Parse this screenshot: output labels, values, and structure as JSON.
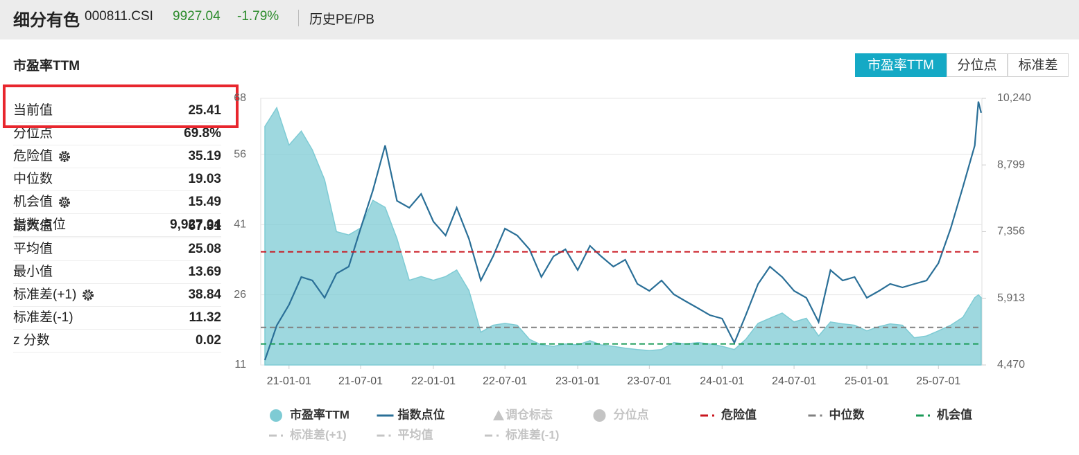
{
  "header": {
    "name": "细分有色",
    "code": "000811.CSI",
    "price": "9927.04",
    "change": "-1.79%",
    "link": "历史PE/PB"
  },
  "panel": {
    "title": "市盈率TTM",
    "tabs": [
      {
        "label": "市盈率TTM",
        "active": true
      },
      {
        "label": "分位点"
      },
      {
        "label": "标准差"
      }
    ]
  },
  "stats": [
    [
      {
        "label": "当前值",
        "value": "25.41"
      },
      {
        "label": "分位点",
        "value": "69.8%"
      },
      {
        "label": "危险值",
        "value": "35.19",
        "gear": true
      },
      {
        "label": "中位数",
        "value": "19.03"
      },
      {
        "label": "机会值",
        "value": "15.49",
        "gear": true
      },
      {
        "label": "指数点位",
        "value": "9,927.04"
      }
    ],
    [
      {
        "label": "最大值",
        "value": "67.31"
      },
      {
        "label": "平均值",
        "value": "25.08"
      },
      {
        "label": "最小值",
        "value": "13.69"
      },
      {
        "label": "标准差(+1)",
        "value": "38.84",
        "gear": true
      },
      {
        "label": "标准差(-1)",
        "value": "11.32"
      },
      {
        "label": "z 分数",
        "value": "0.02"
      }
    ]
  ],
  "chart_data": {
    "type": "area-line",
    "x": [
      "20-11-01",
      "20-12-01",
      "21-01-01",
      "21-02-01",
      "21-03-01",
      "21-04-01",
      "21-05-01",
      "21-06-01",
      "21-07-01",
      "21-08-01",
      "21-09-01",
      "21-10-01",
      "21-11-01",
      "21-12-01",
      "22-01-01",
      "22-02-01",
      "22-03-01",
      "22-04-01",
      "22-05-01",
      "22-06-01",
      "22-07-01",
      "22-08-01",
      "22-09-01",
      "22-10-01",
      "22-11-01",
      "22-12-01",
      "23-01-01",
      "23-02-01",
      "23-03-01",
      "23-04-01",
      "23-05-01",
      "23-06-01",
      "23-07-01",
      "23-08-01",
      "23-09-01",
      "23-10-01",
      "23-11-01",
      "23-12-01",
      "24-01-01",
      "24-02-01",
      "24-03-01",
      "24-04-01",
      "24-05-01",
      "24-06-01",
      "24-07-01",
      "24-08-01",
      "24-09-01",
      "24-10-01",
      "24-11-01",
      "24-12-01",
      "25-01-01",
      "25-02-01",
      "25-03-01",
      "25-04-01",
      "25-05-01",
      "25-06-01",
      "25-07-01",
      "25-08-01",
      "25-09-01",
      "25-10-01",
      "25-10-10",
      "25-10-17"
    ],
    "xlim": [
      "20-10-25",
      "25-10-19"
    ],
    "xticks": [
      "21-01-01",
      "21-07-01",
      "22-01-01",
      "22-07-01",
      "23-01-01",
      "23-07-01",
      "24-01-01",
      "24-07-01",
      "25-01-01",
      "25-07-01"
    ],
    "ylim": [
      11,
      68
    ],
    "yticks": [
      11,
      26,
      41,
      56,
      68
    ],
    "y2lim": [
      4470,
      10240
    ],
    "y2ticks": [
      {
        "value": 4470,
        "label": "4,470"
      },
      {
        "value": 5913,
        "label": "5,913"
      },
      {
        "value": 7356,
        "label": "7,356"
      },
      {
        "value": 8799,
        "label": "8,799"
      },
      {
        "value": 10240,
        "label": "10,240"
      }
    ],
    "grid": true,
    "series": [
      {
        "name": "市盈率TTM",
        "color": "#7ecbd4",
        "values": [
          62,
          66,
          58,
          61,
          57,
          50.6,
          39.5,
          38.8,
          40.3,
          46.2,
          44.7,
          38,
          29.1,
          29.9,
          29.1,
          29.9,
          31.3,
          26.9,
          18,
          19.5,
          19.9,
          19.5,
          16.5,
          15.3,
          15,
          15.5,
          15.3,
          16.2,
          15.3,
          15,
          14.6,
          14.3,
          14.1,
          14.3,
          15.8,
          15.5,
          15.8,
          15.5,
          15,
          14.3,
          16.5,
          19.9,
          21,
          22.1,
          20.2,
          21,
          17.2,
          20.2,
          19.8,
          19.5,
          18.3,
          19.2,
          19.8,
          19.5,
          16.8,
          17.2,
          18.3,
          19.5,
          21.2,
          25.4,
          26,
          25.41
        ]
      },
      {
        "name": "指数点位",
        "color": "#2a6f97",
        "axis": "y2",
        "values": [
          4575,
          5324,
          5774,
          6373,
          6298,
          5924,
          6448,
          6598,
          7422,
          8247,
          9221,
          8022,
          7872,
          8172,
          7572,
          7273,
          7872,
          7198,
          6298,
          6823,
          7422,
          7273,
          6973,
          6373,
          6823,
          6973,
          6523,
          7048,
          6823,
          6598,
          6748,
          6223,
          6073,
          6298,
          5999,
          5849,
          5699,
          5549,
          5474,
          4950,
          5549,
          6223,
          6598,
          6373,
          6073,
          5924,
          5399,
          6523,
          6298,
          6373,
          5924,
          6073,
          6223,
          6148,
          6223,
          6298,
          6673,
          7422,
          8322,
          9221,
          10170,
          9927.04
        ]
      }
    ],
    "reference_lines": [
      {
        "name": "危险值",
        "color": "#c9151e",
        "value": 35.19
      },
      {
        "name": "中位数",
        "color": "#808080",
        "value": 19.03
      },
      {
        "name": "机会值",
        "color": "#1a9a57",
        "value": 15.49
      }
    ],
    "hidden_series": [
      {
        "name": "调仓标志",
        "marker": "triangle"
      },
      {
        "name": "分位点",
        "marker": "circle"
      },
      {
        "name": "标准差(+1)",
        "marker": "dash"
      },
      {
        "name": "平均值",
        "marker": "dash"
      },
      {
        "name": "标准差(-1)",
        "marker": "dash"
      }
    ],
    "hidden_color": "#c4c4c4"
  }
}
